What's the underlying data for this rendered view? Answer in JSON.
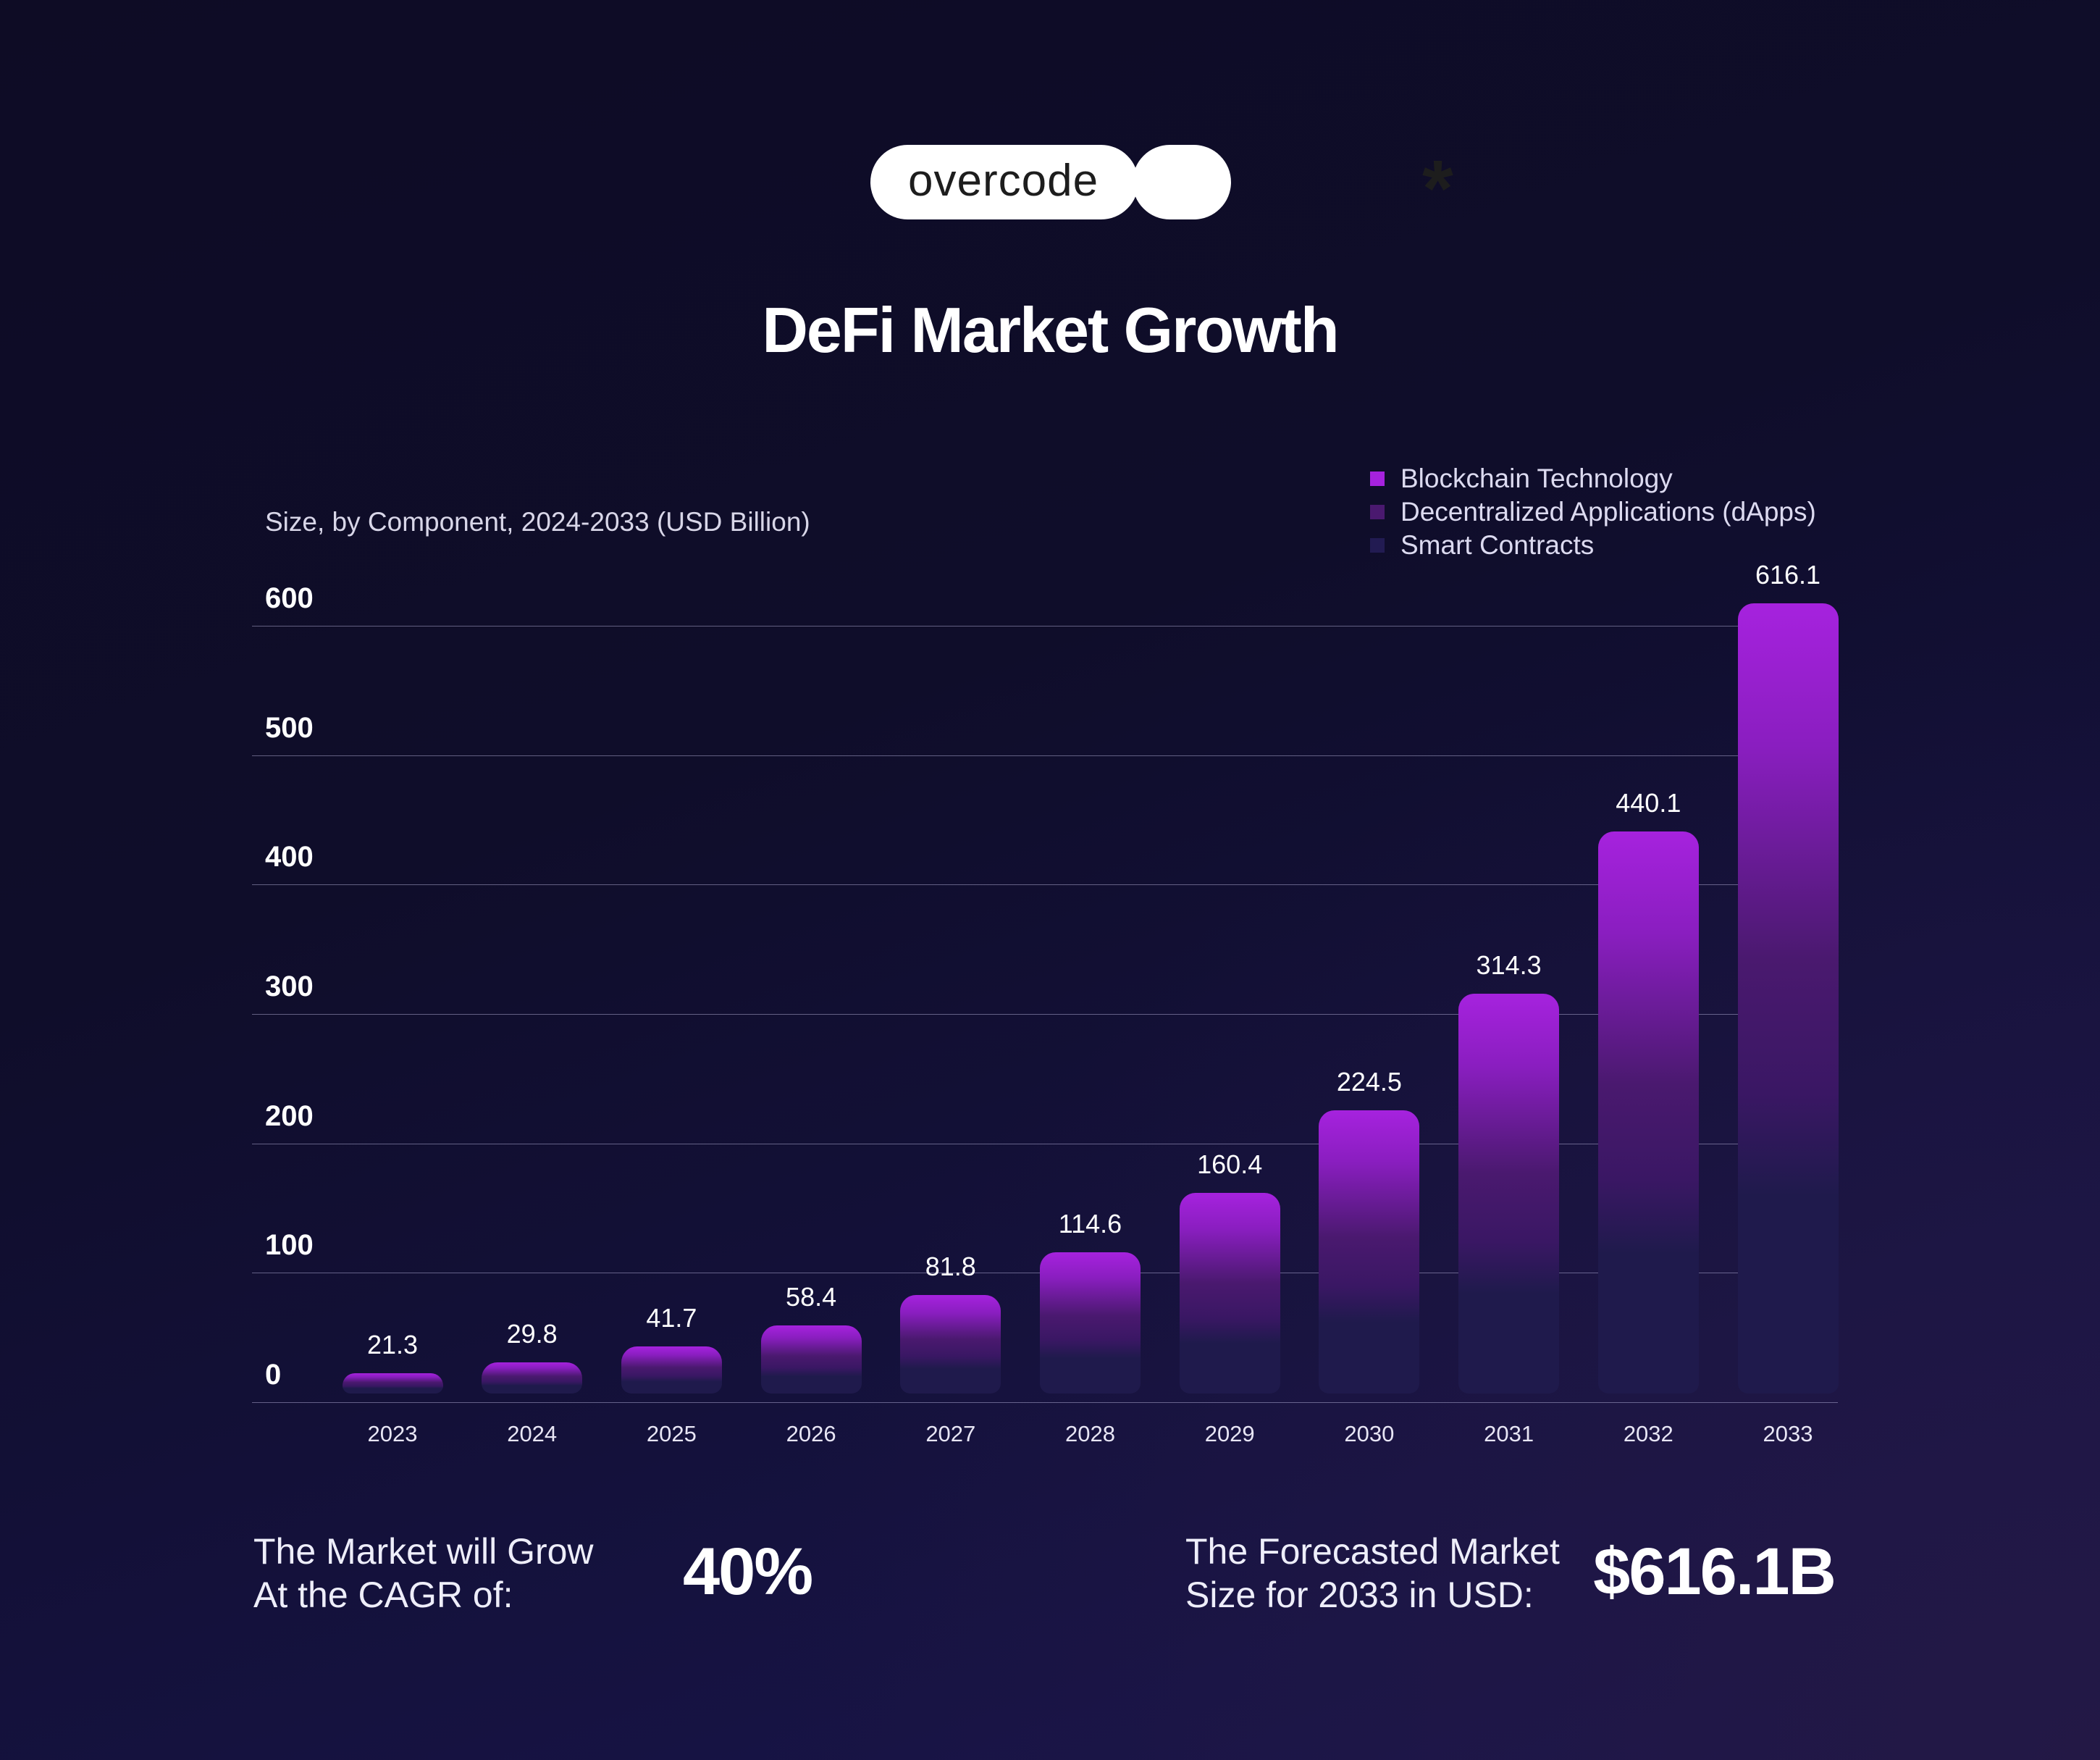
{
  "logo": {
    "text": "overcode",
    "symbol": "*"
  },
  "title": "DeFi Market Growth",
  "footer": {
    "cagr_text_line1": "The Market will Grow",
    "cagr_text_line2": "At the CAGR of:",
    "cagr_value": "40%",
    "forecast_text_line1": "The Forecasted Market",
    "forecast_text_line2": "Size for 2033  in USD:",
    "forecast_value": "$616.1B"
  },
  "colors": {
    "background": "#0e0c25",
    "bar_top": "#a622de",
    "bar_mid": "#4a196f",
    "bar_bottom": "#1f1a4c"
  },
  "chart_data": {
    "type": "bar",
    "title": "DeFi Market Growth",
    "subtitle": "Size, by Component, 2024-2033 (USD Billion)",
    "categories": [
      "2023",
      "2024",
      "2025",
      "2026",
      "2027",
      "2028",
      "2029",
      "2030",
      "2031",
      "2032",
      "2033"
    ],
    "values": [
      21.3,
      29.8,
      41.7,
      58.4,
      81.8,
      114.6,
      160.4,
      224.5,
      314.3,
      440.1,
      616.1
    ],
    "value_labels": [
      "21.3",
      "29.8",
      "41.7",
      "58.4",
      "81.8",
      "114.6",
      "160.4",
      "224.5",
      "314.3",
      "440.1",
      "616.1"
    ],
    "yticks": [
      "0",
      "100",
      "200",
      "300",
      "400",
      "500",
      "600"
    ],
    "ylim": [
      0,
      600
    ],
    "grid": true,
    "legend_position": "top-right",
    "legend": [
      {
        "name": "Blockchain Technology",
        "color": "#a622de"
      },
      {
        "name": "Decentralized Applications (dApps)",
        "color": "#4a196f"
      },
      {
        "name": "Smart Contracts",
        "color": "#221b52"
      }
    ]
  }
}
